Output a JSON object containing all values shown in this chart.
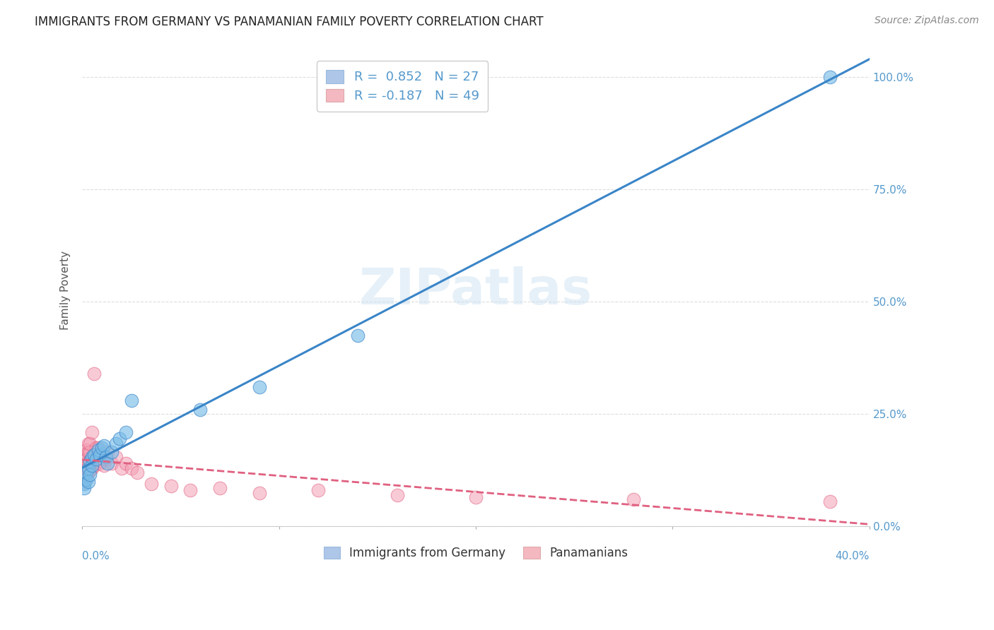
{
  "title": "IMMIGRANTS FROM GERMANY VS PANAMANIAN FAMILY POVERTY CORRELATION CHART",
  "source": "Source: ZipAtlas.com",
  "ylabel": "Family Poverty",
  "legend_label1": "R =  0.852   N = 27",
  "legend_label2": "R = -0.187   N = 49",
  "legend_color1": "#aec6e8",
  "legend_color2": "#f4b8c1",
  "watermark": "ZIPatlas",
  "blue_color": "#7bbde8",
  "pink_color": "#f4a0b5",
  "blue_line_color": "#3a85c8",
  "pink_line_color": "#e06080",
  "background_color": "#ffffff",
  "grid_color": "#dddddd",
  "blue_scatter_x": [
    0.001,
    0.001,
    0.002,
    0.002,
    0.003,
    0.003,
    0.004,
    0.004,
    0.005,
    0.005,
    0.006,
    0.007,
    0.008,
    0.009,
    0.01,
    0.011,
    0.012,
    0.013,
    0.015,
    0.017,
    0.019,
    0.022,
    0.025,
    0.06,
    0.09,
    0.14,
    0.38
  ],
  "blue_scatter_y": [
    0.095,
    0.085,
    0.105,
    0.12,
    0.1,
    0.13,
    0.115,
    0.145,
    0.135,
    0.155,
    0.16,
    0.15,
    0.17,
    0.16,
    0.175,
    0.18,
    0.155,
    0.14,
    0.165,
    0.185,
    0.195,
    0.21,
    0.28,
    0.26,
    0.31,
    0.425,
    1.0
  ],
  "pink_scatter_x": [
    0.0,
    0.001,
    0.001,
    0.001,
    0.001,
    0.002,
    0.002,
    0.002,
    0.002,
    0.003,
    0.003,
    0.003,
    0.003,
    0.004,
    0.004,
    0.004,
    0.004,
    0.005,
    0.005,
    0.005,
    0.006,
    0.006,
    0.006,
    0.007,
    0.007,
    0.008,
    0.008,
    0.009,
    0.009,
    0.01,
    0.011,
    0.012,
    0.013,
    0.015,
    0.017,
    0.02,
    0.022,
    0.025,
    0.028,
    0.035,
    0.045,
    0.055,
    0.07,
    0.09,
    0.12,
    0.16,
    0.2,
    0.28,
    0.38
  ],
  "pink_scatter_y": [
    0.115,
    0.1,
    0.12,
    0.14,
    0.16,
    0.11,
    0.13,
    0.15,
    0.17,
    0.12,
    0.14,
    0.165,
    0.185,
    0.125,
    0.145,
    0.165,
    0.185,
    0.13,
    0.15,
    0.21,
    0.135,
    0.155,
    0.34,
    0.145,
    0.175,
    0.155,
    0.175,
    0.14,
    0.16,
    0.145,
    0.135,
    0.15,
    0.165,
    0.14,
    0.155,
    0.13,
    0.14,
    0.13,
    0.12,
    0.095,
    0.09,
    0.08,
    0.085,
    0.075,
    0.08,
    0.07,
    0.065,
    0.06,
    0.055
  ],
  "xmin": 0.0,
  "xmax": 0.4,
  "ymin": 0.0,
  "ymax": 1.05,
  "yticks": [
    0.0,
    0.25,
    0.5,
    0.75,
    1.0
  ],
  "ytick_labels": [
    "0.0%",
    "25.0%",
    "50.0%",
    "75.0%",
    "100.0%"
  ],
  "right_tick_color": "#5599cc",
  "title_fontsize": 12,
  "source_fontsize": 10,
  "axis_label_fontsize": 11,
  "legend_fontsize": 13
}
